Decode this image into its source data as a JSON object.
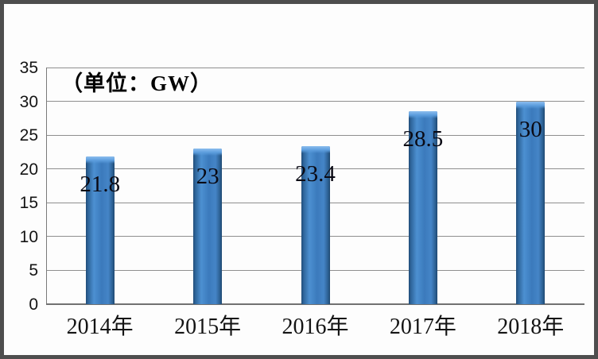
{
  "chart": {
    "unit_label": "（单位：GW）",
    "colors": {
      "bar_main": "#3b7abc",
      "bar_edge": "#1f4c77",
      "bar_highlight": "#8cbdee",
      "gridline": "#8f8f8f",
      "axis": "#717171",
      "frame_border": "#4e4e4e",
      "text": "#141414"
    }
  },
  "chart_data": {
    "type": "bar",
    "title": "（单位：GW）",
    "categories": [
      "2014年",
      "2015年",
      "2016年",
      "2017年",
      "2018年"
    ],
    "values": [
      21.8,
      23,
      23.4,
      28.5,
      30
    ],
    "value_labels": [
      "21.8",
      "23",
      "23.4",
      "28.5",
      "30"
    ],
    "xlabel": "",
    "ylabel": "",
    "ylim": [
      0,
      35
    ],
    "ytick_step": 5,
    "yticks": [
      0,
      5,
      10,
      15,
      20,
      25,
      30,
      35
    ],
    "grid": true,
    "legend_position": "none",
    "bar_color": "#3b7abc"
  }
}
